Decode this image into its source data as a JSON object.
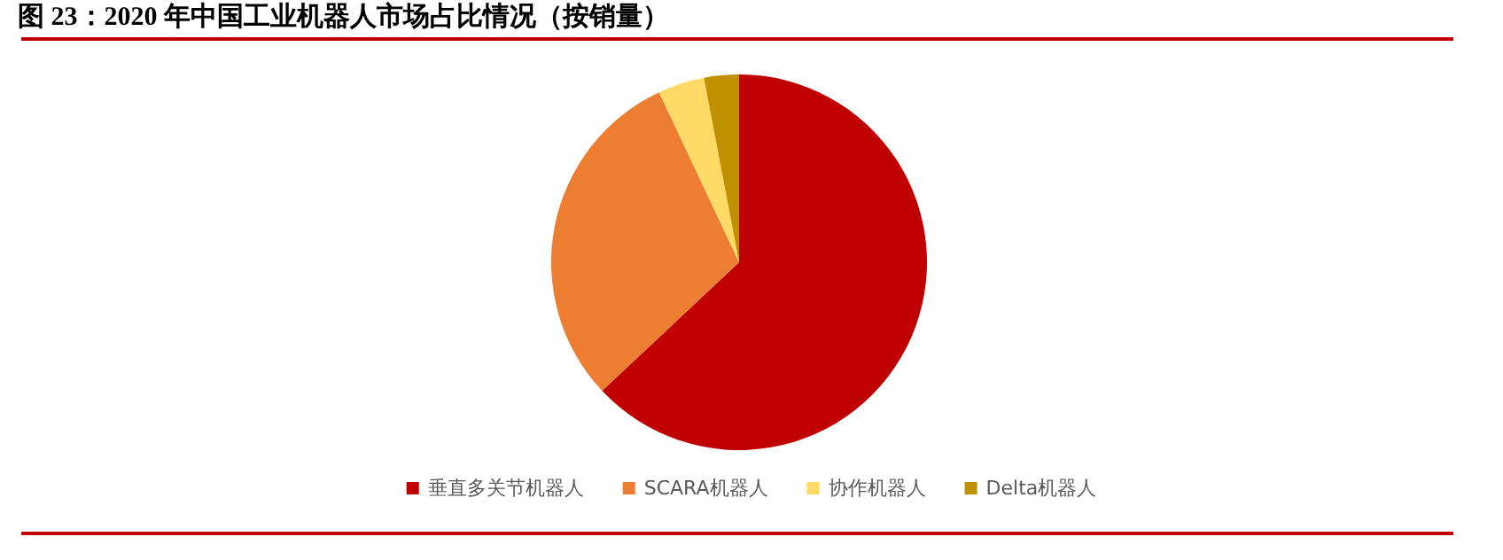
{
  "chart_data": {
    "type": "pie",
    "title": "图 23：2020 年中国工业机器人市场占比情况（按销量）",
    "categories": [
      "垂直多关节机器人",
      "SCARA机器人",
      "协作机器人",
      "Delta机器人"
    ],
    "values": [
      63,
      30,
      4,
      3
    ],
    "colors": [
      "#c00000",
      "#ed7d31",
      "#ffd966",
      "#bf9000"
    ],
    "legend": "bottom"
  }
}
